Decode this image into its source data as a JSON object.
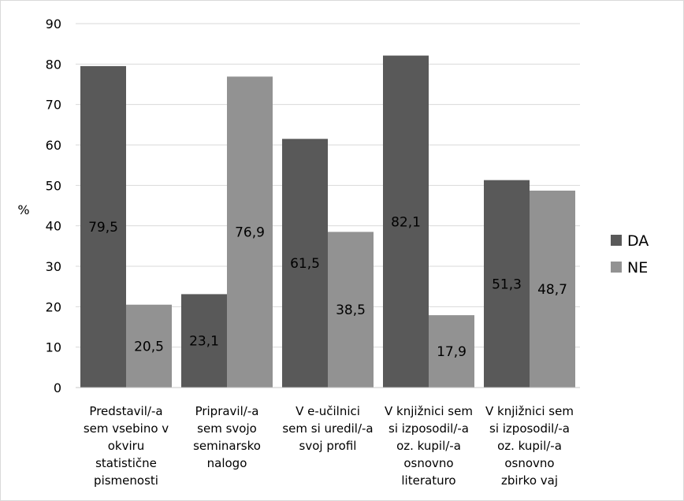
{
  "chart_data": {
    "type": "bar",
    "categories": [
      [
        "Predstavil/-a",
        "sem vsebino v",
        "okviru",
        "statistične",
        "pismenosti"
      ],
      [
        "Pripravil/-a",
        "sem svojo",
        "seminarsko",
        "nalogo"
      ],
      [
        "V e-učilnici",
        "sem si uredil/-a",
        "svoj profil"
      ],
      [
        "V knjižnici sem",
        "si izposodil/-a",
        "oz. kupil/-a",
        "osnovno",
        "literaturo"
      ],
      [
        "V knjižnici sem",
        "si izposodil/-a",
        "oz. kupil/-a",
        "osnovno",
        "zbirko vaj"
      ]
    ],
    "series": [
      {
        "name": "DA",
        "color": "#595959",
        "values": [
          79.5,
          23.1,
          61.5,
          82.1,
          51.3
        ],
        "labels": [
          "79,5",
          "23,1",
          "61,5",
          "82,1",
          "51,3"
        ]
      },
      {
        "name": "NE",
        "color": "#929292",
        "values": [
          20.5,
          76.9,
          38.5,
          17.9,
          48.7
        ],
        "labels": [
          "20,5",
          "76,9",
          "38,5",
          "17,9",
          "48,7"
        ]
      }
    ],
    "ylabel": "%",
    "ylim": [
      0,
      90
    ],
    "yticks": [
      0,
      10,
      20,
      30,
      40,
      50,
      60,
      70,
      80,
      90
    ],
    "grid": true,
    "legend": "right"
  }
}
